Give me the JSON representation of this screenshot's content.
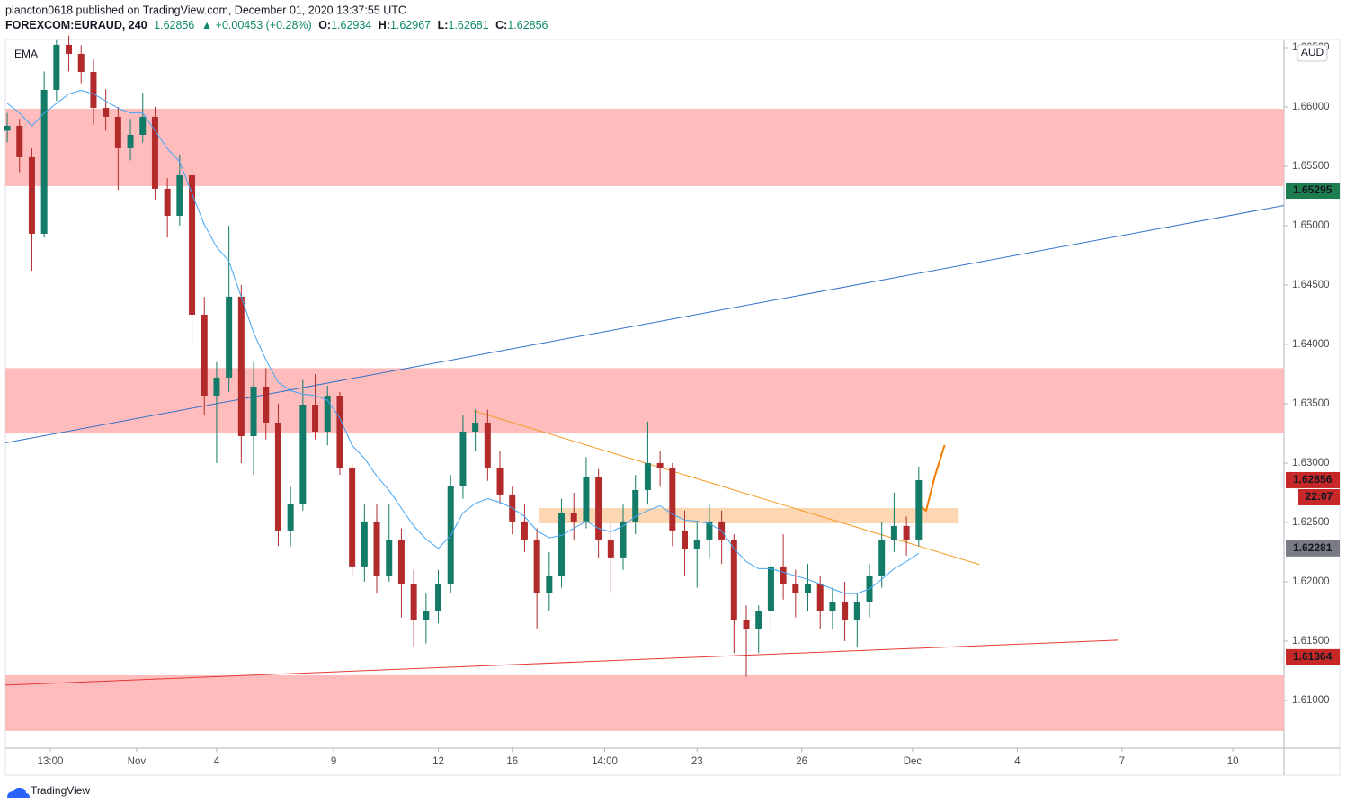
{
  "header": {
    "title": "plancton0618 published on TradingView.com, December 01, 2020 13:37:55 UTC",
    "symbol": "FOREXCOM:EURAUD, 240",
    "last": "1.62856",
    "change": "▲ +0.00453 (+0.28%)",
    "quote": [
      {
        "label": "O:",
        "value": "1.62934"
      },
      {
        "label": "H:",
        "value": "1.62967"
      },
      {
        "label": "L:",
        "value": "1.62681"
      },
      {
        "label": "C:",
        "value": "1.62856"
      }
    ]
  },
  "chart_data": {
    "type": "candlestick",
    "currency": "AUD",
    "up_color": "#137b67",
    "down_color": "#b22a2a",
    "xlim": [
      -0.3,
      207.3
    ],
    "ylim": [
      1.60598,
      1.66568
    ],
    "yticks": [
      {
        "value": 1.61,
        "label": "1.61000"
      },
      {
        "value": 1.615,
        "label": "1.61500"
      },
      {
        "value": 1.62,
        "label": "1.62000"
      },
      {
        "value": 1.625,
        "label": "1.62500"
      },
      {
        "value": 1.63,
        "label": "1.63000"
      },
      {
        "value": 1.635,
        "label": "1.63500"
      },
      {
        "value": 1.64,
        "label": "1.64000"
      },
      {
        "value": 1.645,
        "label": "1.64500"
      },
      {
        "value": 1.65,
        "label": "1.65000"
      },
      {
        "value": 1.655,
        "label": "1.65500"
      },
      {
        "value": 1.66,
        "label": "1.66000"
      },
      {
        "value": 1.665,
        "label": "1.66500"
      }
    ],
    "xticks": [
      {
        "value": 7,
        "label": "13:00"
      },
      {
        "value": 21,
        "label": "Nov"
      },
      {
        "value": 34,
        "label": "4"
      },
      {
        "value": 53,
        "label": "9"
      },
      {
        "value": 70,
        "label": "12"
      },
      {
        "value": 82,
        "label": "16"
      },
      {
        "value": 97,
        "label": "14:00"
      },
      {
        "value": 112,
        "label": "23"
      },
      {
        "value": 129,
        "label": "26"
      },
      {
        "value": 147,
        "label": "Dec"
      },
      {
        "value": 164,
        "label": "4"
      },
      {
        "value": 181,
        "label": "7"
      },
      {
        "value": 199,
        "label": "10"
      }
    ],
    "x": [
      0,
      2,
      4,
      6,
      8,
      10,
      12,
      14,
      16,
      18,
      20,
      22,
      24,
      26,
      28,
      30,
      32,
      34,
      36,
      38,
      40,
      42,
      44,
      46,
      48,
      50,
      52,
      54,
      56,
      58,
      60,
      62,
      64,
      66,
      68,
      70,
      72,
      74,
      76,
      78,
      80,
      82,
      84,
      86,
      88,
      90,
      92,
      94,
      96,
      98,
      100,
      102,
      104,
      106,
      108,
      110,
      112,
      114,
      116,
      118,
      120,
      122,
      124,
      126,
      128,
      130,
      132,
      134,
      136,
      138,
      140,
      142,
      144,
      146,
      148
    ],
    "ohlc": [
      [
        1.658,
        1.6595,
        1.657,
        1.65841
      ],
      [
        1.65841,
        1.659,
        1.6545,
        1.65576
      ],
      [
        1.65576,
        1.6565,
        1.6462,
        1.64932
      ],
      [
        1.64932,
        1.663,
        1.649,
        1.66144
      ],
      [
        1.66144,
        1.6657,
        1.6605,
        1.66523
      ],
      [
        1.66523,
        1.666,
        1.663,
        1.66447
      ],
      [
        1.66447,
        1.6652,
        1.662,
        1.66295
      ],
      [
        1.66295,
        1.664,
        1.6585,
        1.65992
      ],
      [
        1.65992,
        1.6615,
        1.658,
        1.65917
      ],
      [
        1.65917,
        1.66,
        1.653,
        1.65652
      ],
      [
        1.65652,
        1.659,
        1.6555,
        1.65765
      ],
      [
        1.65765,
        1.6612,
        1.657,
        1.65917
      ],
      [
        1.65917,
        1.66,
        1.6522,
        1.65311
      ],
      [
        1.65311,
        1.654,
        1.649,
        1.65083
      ],
      [
        1.65083,
        1.656,
        1.65,
        1.65424
      ],
      [
        1.65424,
        1.655,
        1.64,
        1.6425
      ],
      [
        1.6425,
        1.644,
        1.634,
        1.63568
      ],
      [
        1.63568,
        1.6385,
        1.63,
        1.6372
      ],
      [
        1.6372,
        1.65,
        1.636,
        1.64402
      ],
      [
        1.64402,
        1.645,
        1.63,
        1.63227
      ],
      [
        1.63227,
        1.6385,
        1.629,
        1.63644
      ],
      [
        1.63644,
        1.638,
        1.632,
        1.63341
      ],
      [
        1.63341,
        1.635,
        1.623,
        1.62432
      ],
      [
        1.62432,
        1.628,
        1.623,
        1.62659
      ],
      [
        1.62659,
        1.637,
        1.626,
        1.63492
      ],
      [
        1.63492,
        1.6375,
        1.632,
        1.63265
      ],
      [
        1.63265,
        1.6365,
        1.6315,
        1.63568
      ],
      [
        1.63568,
        1.636,
        1.629,
        1.62962
      ],
      [
        1.62962,
        1.63,
        1.6205,
        1.62129
      ],
      [
        1.62129,
        1.6265,
        1.62,
        1.62508
      ],
      [
        1.62508,
        1.6265,
        1.619,
        1.62053
      ],
      [
        1.62053,
        1.6265,
        1.62,
        1.62356
      ],
      [
        1.62356,
        1.6245,
        1.617,
        1.61977
      ],
      [
        1.61977,
        1.621,
        1.6145,
        1.61674
      ],
      [
        1.61674,
        1.619,
        1.6148,
        1.6175
      ],
      [
        1.6175,
        1.621,
        1.6165,
        1.61977
      ],
      [
        1.61977,
        1.629,
        1.619,
        1.6281
      ],
      [
        1.6281,
        1.634,
        1.627,
        1.63265
      ],
      [
        1.63265,
        1.6345,
        1.631,
        1.63341
      ],
      [
        1.63341,
        1.6345,
        1.6285,
        1.62962
      ],
      [
        1.62962,
        1.631,
        1.6265,
        1.62735
      ],
      [
        1.62735,
        1.628,
        1.624,
        1.62508
      ],
      [
        1.62508,
        1.6265,
        1.6225,
        1.62356
      ],
      [
        1.62356,
        1.6245,
        1.616,
        1.61902
      ],
      [
        1.61902,
        1.6225,
        1.6175,
        1.62053
      ],
      [
        1.62053,
        1.627,
        1.6195,
        1.62583
      ],
      [
        1.62583,
        1.6275,
        1.6235,
        1.62508
      ],
      [
        1.62508,
        1.6305,
        1.6245,
        1.62886
      ],
      [
        1.62886,
        1.6295,
        1.622,
        1.62356
      ],
      [
        1.62356,
        1.625,
        1.619,
        1.62205
      ],
      [
        1.62205,
        1.6265,
        1.621,
        1.62508
      ],
      [
        1.62508,
        1.629,
        1.624,
        1.62773
      ],
      [
        1.62773,
        1.6335,
        1.6265,
        1.63
      ],
      [
        1.63,
        1.631,
        1.628,
        1.62962
      ],
      [
        1.62962,
        1.63,
        1.623,
        1.62432
      ],
      [
        1.62432,
        1.626,
        1.6205,
        1.6228
      ],
      [
        1.6228,
        1.625,
        1.6195,
        1.62356
      ],
      [
        1.62356,
        1.6265,
        1.622,
        1.62508
      ],
      [
        1.62508,
        1.626,
        1.6215,
        1.62356
      ],
      [
        1.62356,
        1.624,
        1.614,
        1.61674
      ],
      [
        1.61674,
        1.618,
        1.612,
        1.616
      ],
      [
        1.616,
        1.618,
        1.614,
        1.6175
      ],
      [
        1.6175,
        1.622,
        1.616,
        1.62129
      ],
      [
        1.62129,
        1.624,
        1.6185,
        1.61977
      ],
      [
        1.61977,
        1.621,
        1.617,
        1.61902
      ],
      [
        1.61902,
        1.6215,
        1.6175,
        1.61977
      ],
      [
        1.61977,
        1.6205,
        1.616,
        1.6175
      ],
      [
        1.6175,
        1.6195,
        1.616,
        1.61826
      ],
      [
        1.61826,
        1.62,
        1.615,
        1.61674
      ],
      [
        1.61674,
        1.619,
        1.6145,
        1.61826
      ],
      [
        1.61826,
        1.6215,
        1.617,
        1.62053
      ],
      [
        1.62053,
        1.625,
        1.6195,
        1.62356
      ],
      [
        1.62356,
        1.6275,
        1.6225,
        1.6247
      ],
      [
        1.6247,
        1.6255,
        1.6222,
        1.62356
      ],
      [
        1.62356,
        1.6297,
        1.623,
        1.62856
      ]
    ],
    "ema": {
      "name": "EMA",
      "color": "#42a5f5",
      "values": [
        1.6603,
        1.6595,
        1.6584,
        1.6595,
        1.6603,
        1.6611,
        1.6614,
        1.6611,
        1.6605,
        1.6599,
        1.6595,
        1.6595,
        1.658,
        1.6565,
        1.6554,
        1.6527,
        1.6501,
        1.6482,
        1.647,
        1.644,
        1.641,
        1.6387,
        1.6368,
        1.6361,
        1.6358,
        1.6357,
        1.6353,
        1.6338,
        1.6315,
        1.6304,
        1.6289,
        1.6277,
        1.6262,
        1.6247,
        1.6236,
        1.6228,
        1.6239,
        1.6258,
        1.6266,
        1.627,
        1.6267,
        1.6262,
        1.6255,
        1.6243,
        1.6237,
        1.6239,
        1.6245,
        1.6251,
        1.6245,
        1.6242,
        1.6247,
        1.6255,
        1.626,
        1.6264,
        1.6257,
        1.6252,
        1.6251,
        1.6249,
        1.6243,
        1.6228,
        1.6217,
        1.6211,
        1.6211,
        1.6208,
        1.6205,
        1.6202,
        1.6198,
        1.6194,
        1.619,
        1.619,
        1.6194,
        1.6202,
        1.6211,
        1.6217,
        1.6224
      ]
    },
    "zones": [
      {
        "color": "#ffbcbc",
        "y": [
          1.65333,
          1.65985
        ]
      },
      {
        "color": "#ffbcbc",
        "y": [
          1.6325,
          1.638
        ]
      },
      {
        "color": "#ffbcbc",
        "y": [
          1.60742,
          1.61212
        ]
      },
      {
        "color": "#fdd7b4",
        "x": [
          86.4,
          154.5
        ],
        "y": [
          1.62492,
          1.62621
        ]
      }
    ],
    "lines": [
      {
        "color": "#2f72c9",
        "width": 1,
        "x": [
          -0.3,
          207.3
        ],
        "y": [
          1.6317,
          1.6517
        ]
      },
      {
        "color": "#f59a23",
        "width": 1,
        "x": [
          75.8,
          157.9
        ],
        "y": [
          1.63439,
          1.62144
        ]
      },
      {
        "color": "#e53935",
        "width": 1,
        "x": [
          -0.3,
          180.3
        ],
        "y": [
          1.61129,
          1.61508
        ]
      },
      {
        "color": "#f57c00",
        "width": 2,
        "x": [
          147.7,
          149.2,
          150.6,
          152.2
        ],
        "y": [
          1.62659,
          1.62598,
          1.62886,
          1.63152
        ]
      }
    ],
    "price_tags": [
      {
        "value": 1.65295,
        "color": "#1e7d4f"
      },
      {
        "value": 1.62856,
        "color": "#c62828"
      },
      {
        "value": 1.62281,
        "color": "#787b86"
      },
      {
        "value": 1.61364,
        "color": "#c62828"
      }
    ],
    "countdown": "22:07"
  },
  "footer": {
    "brand": "TradingView"
  }
}
